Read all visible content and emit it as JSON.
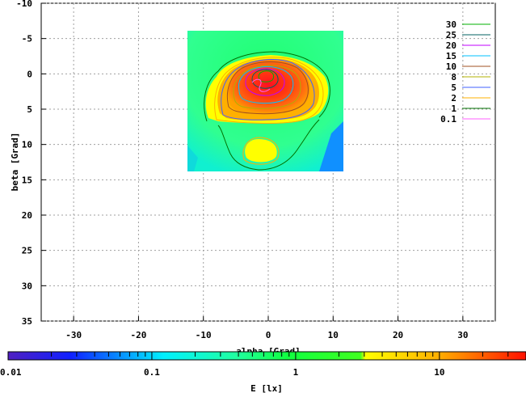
{
  "chart_data": {
    "type": "heatmap",
    "xlabel": "alpha [Grad]",
    "ylabel": "beta [Grad]",
    "xlim": [
      -35,
      35
    ],
    "ylim": [
      -10,
      35
    ],
    "y_inverted": true,
    "grid": true,
    "x_ticks": [
      "-30",
      "-20",
      "-10",
      "0",
      "10",
      "20",
      "30"
    ],
    "y_ticks": [
      "-10",
      "-5",
      "0",
      "5",
      "10",
      "15",
      "20",
      "25",
      "30",
      "35"
    ],
    "data_extent": {
      "alpha": [
        -12,
        12
      ],
      "beta": [
        -6,
        14
      ]
    },
    "legend_position": "top-right",
    "contour_levels": [
      {
        "label": "30",
        "color": "#00b000"
      },
      {
        "label": "25",
        "color": "#006060"
      },
      {
        "label": "20",
        "color": "#c000ff"
      },
      {
        "label": "15",
        "color": "#00c0ff"
      },
      {
        "label": "10",
        "color": "#a05020"
      },
      {
        "label": "8",
        "color": "#b0b000"
      },
      {
        "label": "5",
        "color": "#4060ff"
      },
      {
        "label": "2",
        "color": "#ffb000"
      },
      {
        "label": "1",
        "color": "#007000"
      },
      {
        "label": "0.1",
        "color": "#ff60ff"
      }
    ],
    "colorbar": {
      "label": "E [lx]",
      "scale": "log",
      "range": [
        0.01,
        40
      ],
      "ticks": [
        "0.01",
        "0.1",
        "1",
        "10"
      ]
    },
    "peak": {
      "alpha": -1,
      "beta": 0,
      "approx_max_lx": 30
    }
  }
}
